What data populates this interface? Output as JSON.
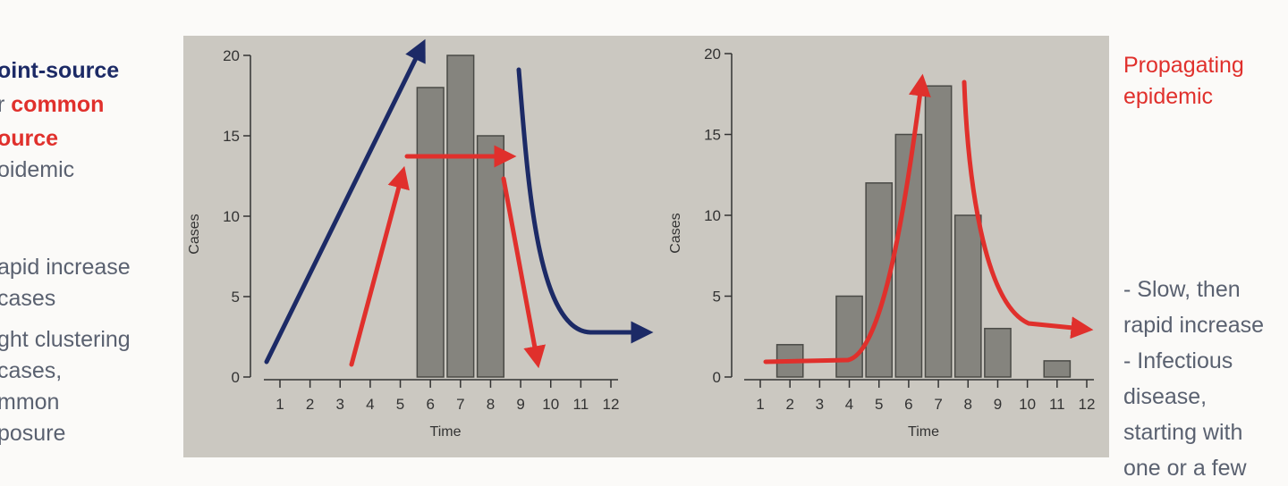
{
  "left_text": {
    "title_part1": "oint-source",
    "title_part2_prefix": "r ",
    "title_part2": "common",
    "title_part3": "ource",
    "title_part4": "oidemic",
    "bullets": [
      "apid increase",
      " cases",
      "ght clustering",
      " cases,",
      "mmon",
      "posure"
    ]
  },
  "right_text": {
    "title_line1": "Propagating",
    "title_line2": "epidemic",
    "bullets": [
      "- Slow, then",
      "rapid increase",
      "- Infectious",
      "disease,",
      "starting with",
      "one or a few"
    ]
  },
  "colors": {
    "blue": "#1c2a66",
    "red": "#e0302c",
    "bar": "#85847e",
    "photo_bg": "#cbc8c1"
  },
  "chart_data": [
    {
      "type": "bar",
      "xlabel": "Time",
      "ylabel": "Cases",
      "categories": [
        "1",
        "2",
        "3",
        "4",
        "5",
        "6",
        "7",
        "8",
        "9",
        "10",
        "11",
        "12"
      ],
      "values": [
        0,
        0,
        0,
        0,
        0,
        18,
        20,
        15,
        0,
        0,
        0,
        0
      ],
      "yticks": [
        "0",
        "5",
        "10",
        "15",
        "20"
      ],
      "ylim": [
        0,
        20
      ]
    },
    {
      "type": "bar",
      "xlabel": "Time",
      "ylabel": "Cases",
      "categories": [
        "1",
        "2",
        "3",
        "4",
        "5",
        "6",
        "7",
        "8",
        "9",
        "10",
        "11",
        "12"
      ],
      "values": [
        0,
        2,
        0,
        5,
        12,
        15,
        18,
        10,
        3,
        0,
        1,
        0
      ],
      "yticks": [
        "0",
        "5",
        "10",
        "15",
        "20"
      ],
      "ylim": [
        0,
        20
      ]
    }
  ]
}
